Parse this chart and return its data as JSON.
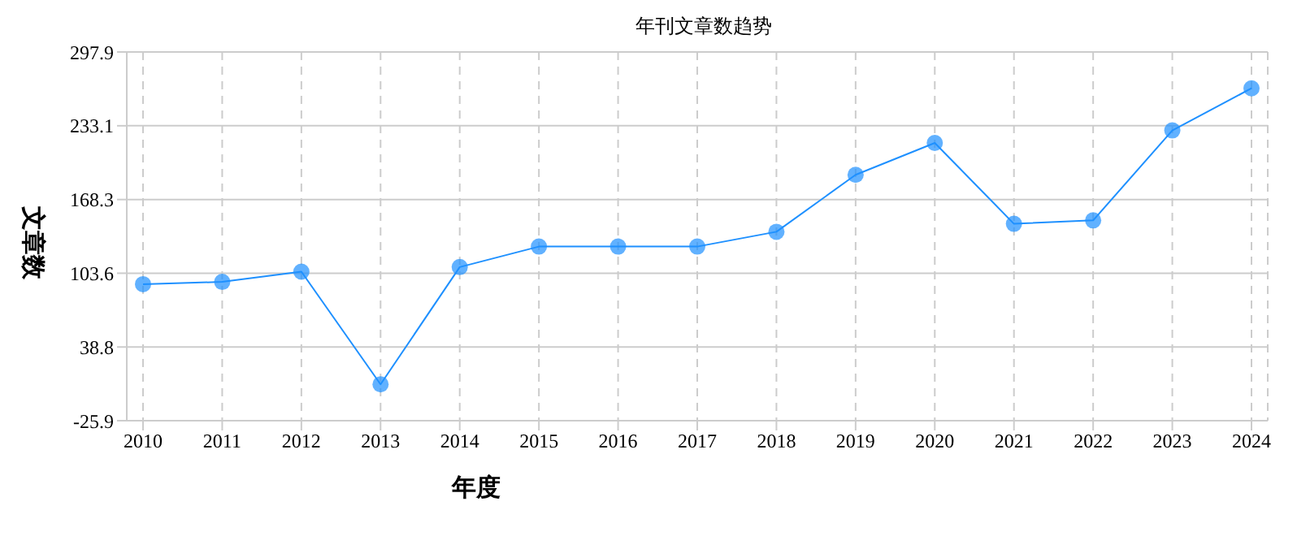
{
  "chart_data": {
    "type": "line",
    "title": "年刊文章数趋势",
    "xlabel": "年度",
    "ylabel": "文章数",
    "categories": [
      "2010",
      "2011",
      "2012",
      "2013",
      "2014",
      "2015",
      "2016",
      "2017",
      "2018",
      "2019",
      "2020",
      "2021",
      "2022",
      "2023",
      "2024"
    ],
    "series": [
      {
        "color": "#1e90ff",
        "values": [
          94,
          96,
          105,
          6,
          109,
          127,
          127,
          127,
          140,
          190,
          218,
          147,
          150,
          229,
          266
        ]
      }
    ],
    "ylim": [
      -25.9,
      297.9
    ],
    "yticks": [
      -25.9,
      38.8,
      103.6,
      168.3,
      233.1,
      297.9
    ],
    "grid": true,
    "marker": "circle",
    "line_style": "solid",
    "legend": false
  }
}
